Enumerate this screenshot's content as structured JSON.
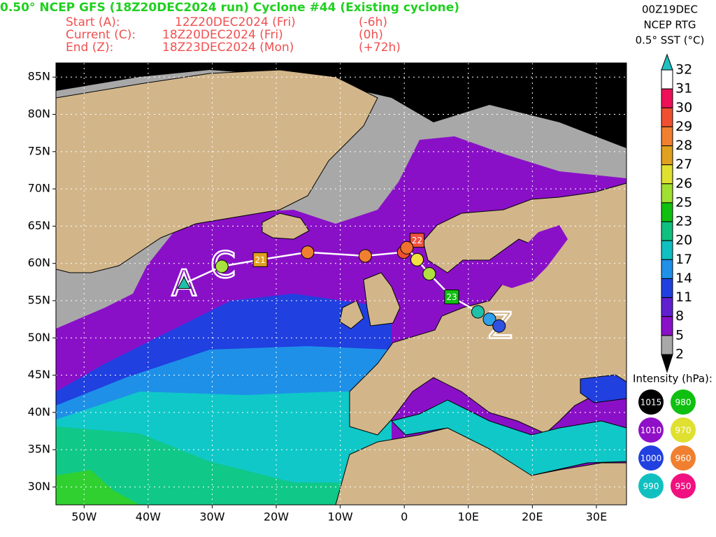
{
  "header": {
    "title": "0.50° NCEP GFS (18Z20DEC2024 run) Cyclone #44 (Existing cyclone)",
    "times": [
      {
        "label": "Start (A):",
        "date": "12Z20DEC2024 (Fri)",
        "offset": "(-6h)"
      },
      {
        "label": "Current (C):",
        "date": "18Z20DEC2024 (Fri)",
        "offset": "(0h)"
      },
      {
        "label": "End (Z):",
        "date": "18Z23DEC2024 (Mon)",
        "offset": "(+72h)"
      }
    ]
  },
  "info": {
    "lines": [
      "00Z19DEC",
      "NCEP RTG",
      "0.5° SST (°C)"
    ]
  },
  "map": {
    "xlim": [
      -54.4,
      34.7
    ],
    "ylim": [
      27.6,
      86.9
    ],
    "grid": true,
    "yticks": [
      {
        "value": 85,
        "label": "85N"
      },
      {
        "value": 80,
        "label": "80N"
      },
      {
        "value": 75,
        "label": "75N"
      },
      {
        "value": 70,
        "label": "70N"
      },
      {
        "value": 65,
        "label": "65N"
      },
      {
        "value": 60,
        "label": "60N"
      },
      {
        "value": 55,
        "label": "55N"
      },
      {
        "value": 50,
        "label": "50N"
      },
      {
        "value": 45,
        "label": "45N"
      },
      {
        "value": 40,
        "label": "40N"
      },
      {
        "value": 35,
        "label": "35N"
      },
      {
        "value": 30,
        "label": "30N"
      }
    ],
    "xticks": [
      {
        "value": -50,
        "label": "50W"
      },
      {
        "value": -40,
        "label": "40W"
      },
      {
        "value": -30,
        "label": "30W"
      },
      {
        "value": -20,
        "label": "20W"
      },
      {
        "value": -10,
        "label": "10W"
      },
      0,
      {
        "value": 10,
        "label": "10E"
      },
      {
        "value": 20,
        "label": "20E"
      },
      {
        "value": 30,
        "label": "30E"
      }
    ]
  },
  "track": {
    "color": "#ffffff",
    "points": [
      {
        "lon": -34.4,
        "lat": 57.3,
        "color": "#20c0a8",
        "shape": "triangle"
      },
      {
        "lon": -28.5,
        "lat": 59.6,
        "color": "#a8e040",
        "shape": "circle"
      },
      {
        "lon": -22.5,
        "lat": 60.5,
        "color": "#e0a020",
        "shape": "square",
        "label": "21"
      },
      {
        "lon": -15.1,
        "lat": 61.5,
        "color": "#f08030",
        "shape": "circle"
      },
      {
        "lon": -6.1,
        "lat": 61.0,
        "color": "#f08030",
        "shape": "circle"
      },
      {
        "lon": -0.1,
        "lat": 61.5,
        "color": "#f05030",
        "shape": "circle"
      },
      {
        "lon": 2.0,
        "lat": 63.1,
        "color": "#f05040",
        "shape": "square",
        "label": "22"
      },
      {
        "lon": 0.4,
        "lat": 62.1,
        "color": "#f07030",
        "shape": "circle"
      },
      {
        "lon": 2.0,
        "lat": 60.5,
        "color": "#f0e040",
        "shape": "circle"
      },
      {
        "lon": 3.9,
        "lat": 58.6,
        "color": "#b0e040",
        "shape": "circle"
      },
      {
        "lon": 7.4,
        "lat": 55.5,
        "color": "#10c010",
        "shape": "square",
        "label": "23"
      },
      {
        "lon": 11.5,
        "lat": 53.5,
        "color": "#20c0a8",
        "shape": "circle"
      },
      {
        "lon": 13.3,
        "lat": 52.5,
        "color": "#30a0e8",
        "shape": "circle"
      },
      {
        "lon": 14.8,
        "lat": 51.6,
        "color": "#3050e0",
        "shape": "circle"
      }
    ]
  },
  "letters": [
    {
      "text": "A",
      "lon": -34.4,
      "lat": 57.0
    },
    {
      "text": "C",
      "lon": -28.3,
      "lat": 59.4
    },
    {
      "text": "Z",
      "lon": 15.0,
      "lat": 51.3
    }
  ],
  "colorbar": {
    "ticks": [
      32,
      31,
      30,
      29,
      28,
      27,
      26,
      25,
      23,
      20,
      17,
      14,
      11,
      8,
      5,
      2
    ],
    "colors": [
      "#ffffff",
      "#f0105a",
      "#f05030",
      "#f08030",
      "#e0a020",
      "#e0e030",
      "#a0e030",
      "#10c010",
      "#10c080",
      "#10c0c0",
      "#2090e8",
      "#2040e0",
      "#6020d0",
      "#8a10c8",
      "#a8a8a8"
    ],
    "above": "#20c0c0",
    "below": "#000000"
  },
  "intensity": {
    "title": "Intensity (hPa):",
    "items": [
      {
        "label": 1015,
        "color": "#000000"
      },
      {
        "label": 980,
        "color": "#10c010"
      },
      {
        "label": 1010,
        "color": "#9010c8"
      },
      {
        "label": 970,
        "color": "#e0e030"
      },
      {
        "label": 1000,
        "color": "#2040e0"
      },
      {
        "label": 960,
        "color": "#f08030"
      },
      {
        "label": 990,
        "color": "#10c0c0"
      },
      {
        "label": 950,
        "color": "#f01080"
      }
    ]
  }
}
